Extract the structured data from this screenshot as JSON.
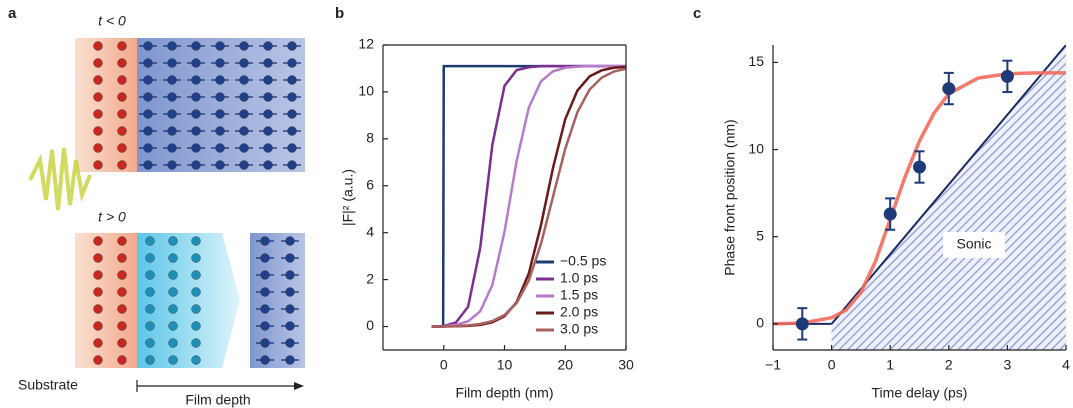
{
  "figure": {
    "panel_labels": [
      "a",
      "b",
      "c"
    ],
    "diagram": {
      "before": "t < 0",
      "after": "t > 0",
      "substrate": "Substrate",
      "film_depth": "Film depth"
    }
  },
  "chart_data": [
    {
      "type": "line",
      "x_label": "Film depth (nm)",
      "y_label": "|F|² (a.u.)",
      "xlim": [
        -10,
        30
      ],
      "xticks": [
        0,
        10,
        20,
        30
      ],
      "ylim": [
        -1,
        12
      ],
      "yticks": [
        0,
        2,
        4,
        6,
        8,
        10,
        12
      ],
      "legend": "lower right",
      "x": [
        -2,
        -0.1,
        0,
        2,
        4,
        6,
        8,
        10,
        12,
        14,
        16,
        18,
        20,
        22,
        24,
        26,
        28,
        30
      ],
      "series": [
        {
          "name": "−0.5 ps",
          "color": "#1f3a6e",
          "values": [
            0,
            0,
            11.1,
            11.1,
            11.1,
            11.1,
            11.1,
            11.1,
            11.1,
            11.1,
            11.1,
            11.1,
            11.1,
            11.1,
            11.1,
            11.1,
            11.1,
            11.1
          ]
        },
        {
          "name": "1.0 ps",
          "color": "#7b2f8f",
          "values": [
            0,
            0,
            0.03,
            0.17,
            0.84,
            3.35,
            7.75,
            10.26,
            10.93,
            11.05,
            11.1,
            11.1,
            11.1,
            11.1,
            11.1,
            11.1,
            11.1,
            11.1
          ]
        },
        {
          "name": "1.5 ps",
          "color": "#b77bc9",
          "values": [
            0,
            0,
            0.02,
            0.07,
            0.22,
            0.65,
            1.77,
            4.04,
            7.06,
            9.33,
            10.45,
            10.88,
            11.03,
            11.08,
            11.1,
            11.1,
            11.1,
            11.1
          ]
        },
        {
          "name": "2.0 ps",
          "color": "#6b1a1a",
          "values": [
            0,
            0,
            0,
            0.01,
            0.03,
            0.07,
            0.18,
            0.44,
            1.04,
            2.26,
            4.32,
            6.78,
            8.84,
            10.06,
            10.66,
            10.92,
            11.03,
            11.07
          ]
        },
        {
          "name": "3.0 ps",
          "color": "#a86060",
          "values": [
            0,
            0,
            0.01,
            0.02,
            0.05,
            0.11,
            0.23,
            0.49,
            1.0,
            1.96,
            3.52,
            5.55,
            7.58,
            9.14,
            10.1,
            10.61,
            10.87,
            10.99
          ]
        }
      ]
    },
    {
      "type": "scatter",
      "x_label": "Time delay (ps)",
      "y_label": "Phase front position (nm)",
      "xlim": [
        -1,
        4
      ],
      "xticks": [
        {
          "value": -1,
          "label": "−1"
        },
        0,
        1,
        2,
        3,
        4
      ],
      "ylim": [
        -1.5,
        16
      ],
      "yticks": [
        0,
        5,
        10,
        15
      ],
      "points": {
        "color": "#1e3a78",
        "x": [
          -0.5,
          1,
          1.5,
          2,
          3
        ],
        "values": [
          0,
          6.3,
          9,
          13.5,
          14.2
        ],
        "errors": [
          0.9,
          0.9,
          0.9,
          0.9,
          0.9
        ]
      },
      "fit": {
        "color": "#f26b5b",
        "x": [
          -1,
          -0.5,
          0,
          0.25,
          0.5,
          0.75,
          1,
          1.25,
          1.5,
          1.75,
          2,
          2.5,
          3,
          3.5,
          4
        ],
        "values": [
          0,
          0.05,
          0.35,
          0.8,
          1.8,
          3.6,
          6.0,
          8.4,
          10.5,
          12.1,
          13.2,
          14.1,
          14.35,
          14.4,
          14.4
        ]
      },
      "sonic": {
        "label": "Sonic",
        "color": "#1a2a60",
        "x": [
          0,
          4
        ],
        "values": [
          0,
          16
        ]
      }
    }
  ]
}
